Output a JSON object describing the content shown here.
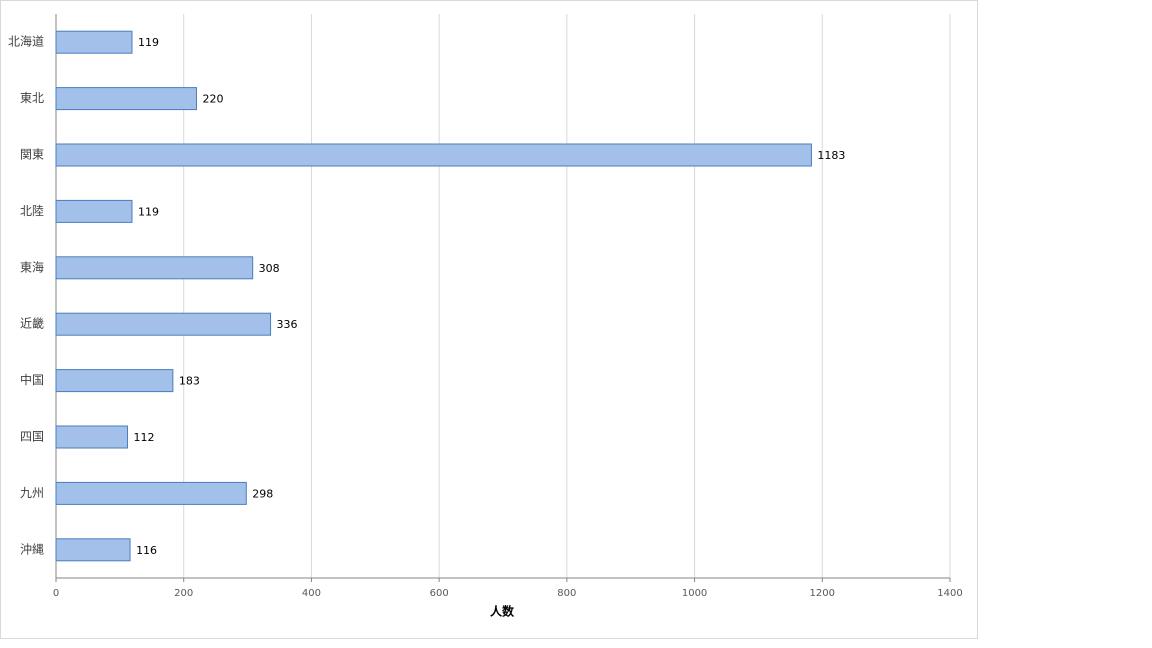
{
  "chart_data": {
    "type": "bar",
    "orientation": "horizontal",
    "categories": [
      "北海道",
      "東北",
      "関東",
      "北陸",
      "東海",
      "近畿",
      "中国",
      "四国",
      "九州",
      "沖縄"
    ],
    "values": [
      119,
      220,
      1183,
      119,
      308,
      336,
      183,
      112,
      298,
      116
    ],
    "color": "#a3c0ea",
    "xlabel": "人数",
    "xlim": [
      0,
      1400
    ],
    "xticks": [
      0,
      200,
      400,
      600,
      800,
      1000,
      1200,
      1400
    ],
    "grid": true
  }
}
